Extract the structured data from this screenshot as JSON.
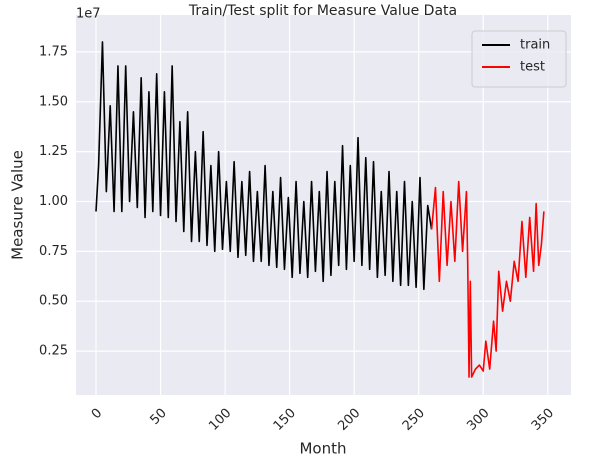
{
  "chart_data": {
    "type": "line",
    "title": "Train/Test split for Measure Value Data",
    "xlabel": "Month",
    "ylabel": "Measure Value",
    "offset_label": "1e7",
    "xlim": [
      -15.5,
      368
    ],
    "ylim": [
      0.03,
      1.935
    ],
    "xticks": [
      0,
      50,
      100,
      150,
      200,
      250,
      300,
      350
    ],
    "yticks": [
      0.25,
      {
        "value": 0.5,
        "label": "0.50"
      },
      0.75,
      {
        "value": 1.0,
        "label": "1.00"
      },
      1.25,
      {
        "value": 1.5,
        "label": "1.50"
      },
      1.75
    ],
    "grid": true,
    "legend": "upper right",
    "series": [
      {
        "name": "train",
        "color": "#000000",
        "x": [
          0,
          2,
          5,
          8,
          11,
          14,
          17,
          20,
          23,
          26,
          29,
          32,
          35,
          38,
          41,
          44,
          47,
          50,
          53,
          56,
          59,
          62,
          65,
          68,
          71,
          74,
          77,
          80,
          83,
          86,
          89,
          92,
          95,
          98,
          101,
          104,
          107,
          110,
          113,
          116,
          119,
          122,
          125,
          128,
          131,
          134,
          137,
          140,
          143,
          146,
          149,
          152,
          155,
          158,
          161,
          164,
          167,
          170,
          173,
          176,
          179,
          182,
          185,
          188,
          191,
          194,
          197,
          200,
          203,
          206,
          209,
          212,
          215,
          218,
          221,
          224,
          227,
          230,
          233,
          236,
          239,
          242,
          245,
          248,
          251,
          254,
          257,
          260
        ],
        "values": [
          0.95,
          1.18,
          1.8,
          1.05,
          1.48,
          0.95,
          1.68,
          0.95,
          1.68,
          1.0,
          1.45,
          0.97,
          1.62,
          0.92,
          1.55,
          0.95,
          1.64,
          0.93,
          1.55,
          0.92,
          1.68,
          0.9,
          1.4,
          0.85,
          1.45,
          0.8,
          1.25,
          0.8,
          1.35,
          0.78,
          1.18,
          0.75,
          1.25,
          0.76,
          1.1,
          0.75,
          1.2,
          0.72,
          1.1,
          0.73,
          1.15,
          0.7,
          1.05,
          0.7,
          1.18,
          0.68,
          1.05,
          0.67,
          1.12,
          0.66,
          1.02,
          0.62,
          1.1,
          0.64,
          1.0,
          0.62,
          1.1,
          0.65,
          1.05,
          0.6,
          1.15,
          0.63,
          1.1,
          0.68,
          1.28,
          0.66,
          1.18,
          0.7,
          1.32,
          0.68,
          1.22,
          0.66,
          1.2,
          0.62,
          1.05,
          0.63,
          1.15,
          0.6,
          1.05,
          0.58,
          1.1,
          0.58,
          1.0,
          0.57,
          1.12,
          0.56,
          0.98,
          0.86
        ]
      },
      {
        "name": "test",
        "color": "#ff0000",
        "x": [
          260,
          263,
          266,
          269,
          272,
          275,
          278,
          281,
          284,
          287,
          288,
          289,
          290,
          291,
          294,
          297,
          300,
          302,
          305,
          308,
          310,
          312,
          315,
          318,
          321,
          324,
          327,
          330,
          333,
          336,
          339,
          341,
          343,
          345,
          347
        ],
        "values": [
          0.86,
          1.07,
          0.6,
          1.05,
          0.68,
          1.0,
          0.7,
          1.1,
          0.75,
          1.05,
          0.68,
          0.12,
          0.6,
          0.12,
          0.16,
          0.18,
          0.15,
          0.3,
          0.16,
          0.4,
          0.25,
          0.65,
          0.45,
          0.6,
          0.5,
          0.7,
          0.6,
          0.9,
          0.62,
          0.92,
          0.65,
          0.99,
          0.68,
          0.78,
          0.95
        ]
      }
    ]
  }
}
